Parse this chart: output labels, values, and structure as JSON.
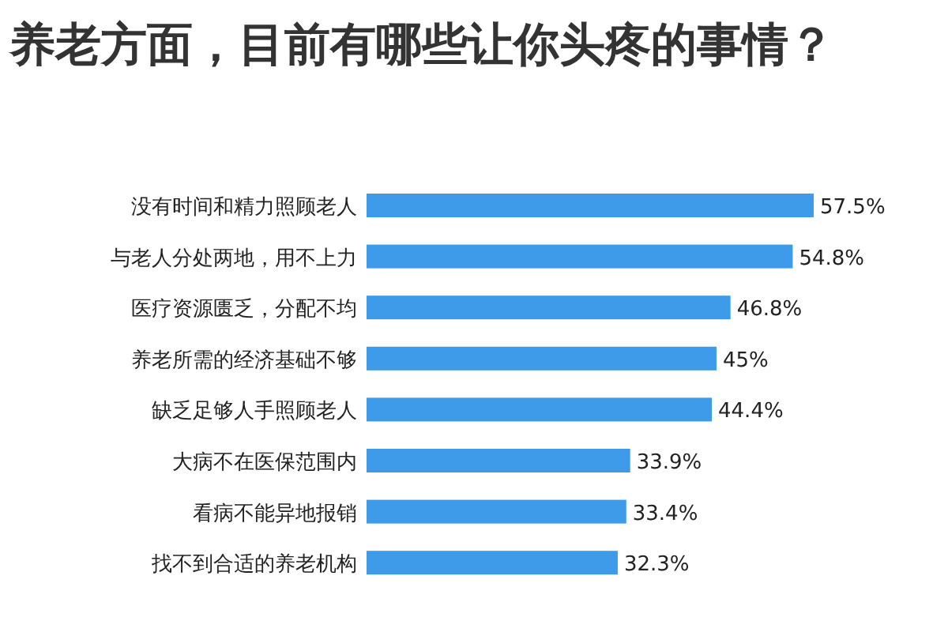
{
  "chart_data": {
    "type": "bar",
    "orientation": "horizontal",
    "title": "养老方面，目前有哪些让你头疼的事情？",
    "categories": [
      "没有时间和精力照顾老人",
      "与老人分处两地，用不上力",
      "医疗资源匮乏，分配不均",
      "养老所需的经济基础不够",
      "缺乏足够人手照顾老人",
      "大病不在医保范围内",
      "看病不能异地报销",
      "找不到合适的养老机构"
    ],
    "values": [
      57.5,
      54.8,
      46.8,
      45,
      44.4,
      33.9,
      33.4,
      32.3
    ],
    "value_labels": [
      "57.5%",
      "54.8%",
      "46.8%",
      "45%",
      "44.4%",
      "33.9%",
      "33.4%",
      "32.3%"
    ],
    "color": "#3d9be9"
  }
}
